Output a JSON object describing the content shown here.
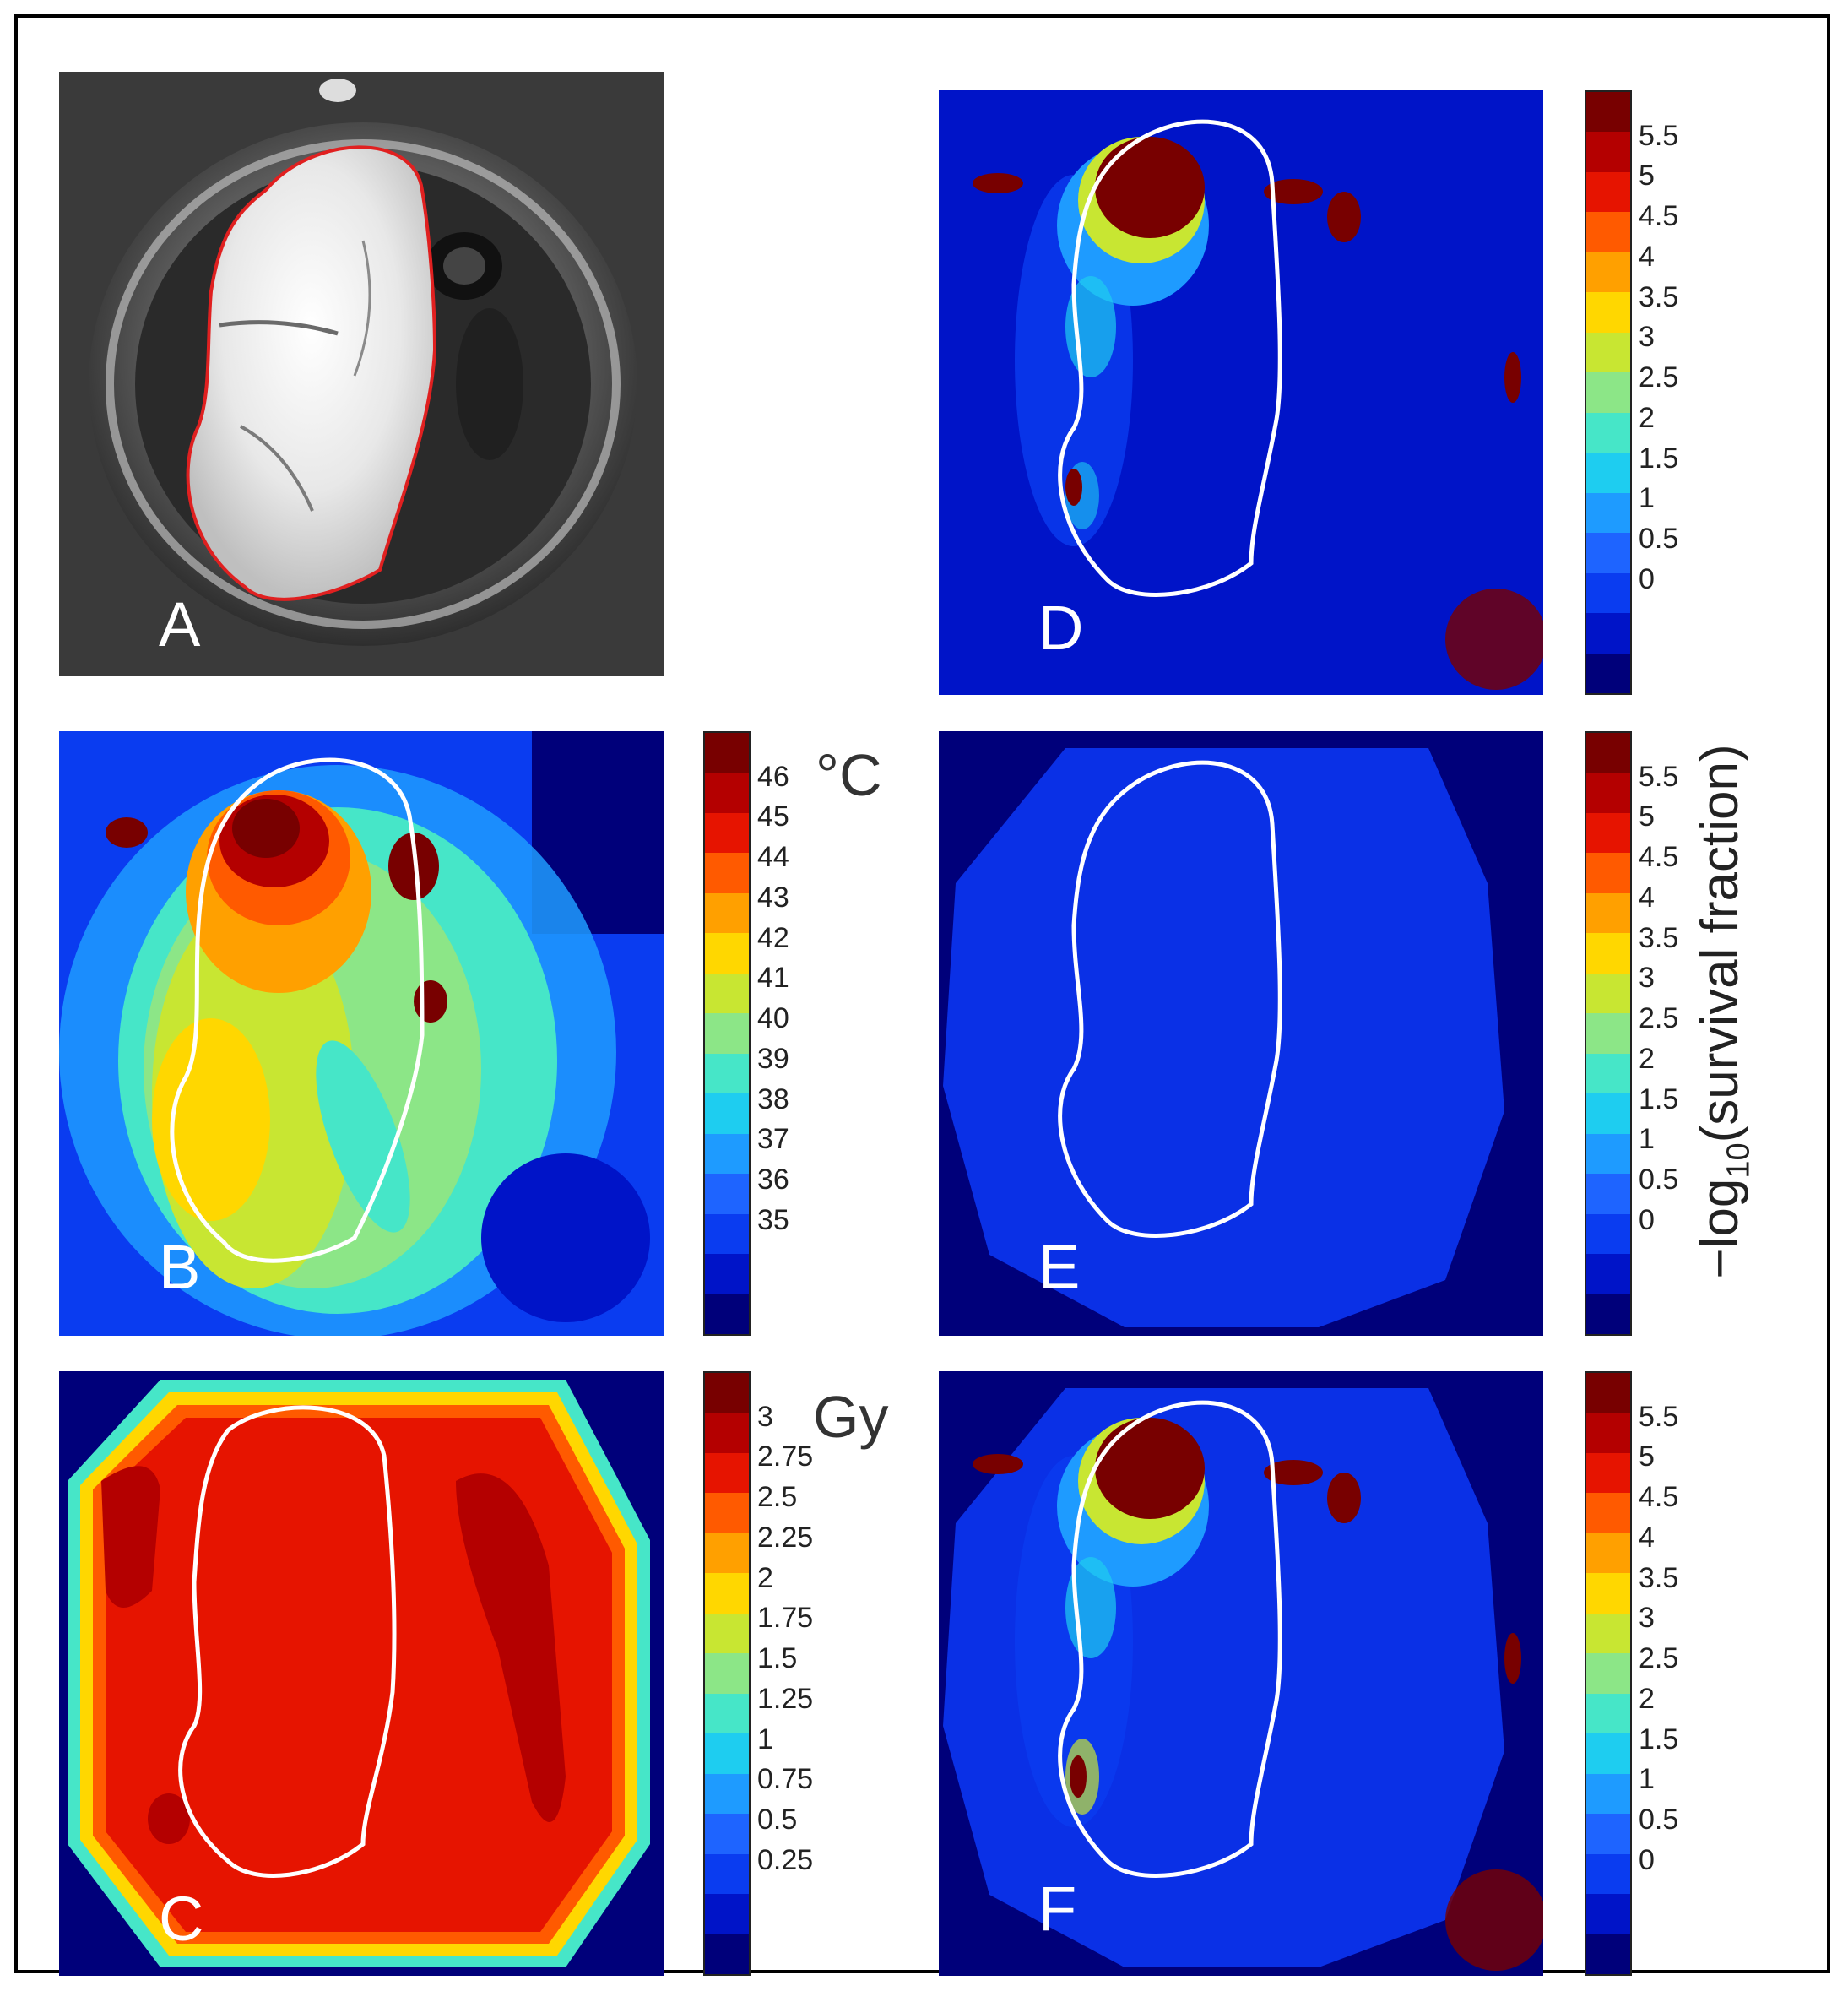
{
  "panels": {
    "A": {
      "label": "A"
    },
    "B": {
      "label": "B"
    },
    "C": {
      "label": "C"
    },
    "D": {
      "label": "D"
    },
    "E": {
      "label": "E"
    },
    "F": {
      "label": "F"
    }
  },
  "colorbars": {
    "temperature": {
      "unit": "°C",
      "ticks": [
        "46",
        "45",
        "44",
        "43",
        "42",
        "41",
        "40",
        "39",
        "38",
        "37",
        "36",
        "35"
      ]
    },
    "dose": {
      "unit": "Gy",
      "ticks": [
        "3",
        "2.75",
        "2.5",
        "2.25",
        "2",
        "1.75",
        "1.5",
        "1.25",
        "1",
        "0.75",
        "0.5",
        "0.25"
      ]
    },
    "survival_d": {
      "ticks": [
        "5.5",
        "5",
        "4.5",
        "4",
        "3.5",
        "3",
        "2.5",
        "2",
        "1.5",
        "1",
        "0.5",
        "0"
      ]
    },
    "survival_e": {
      "ticks": [
        "5.5",
        "5",
        "4.5",
        "4",
        "3.5",
        "3",
        "2.5",
        "2",
        "1.5",
        "1",
        "0.5",
        "0"
      ]
    },
    "survival_f": {
      "ticks": [
        "5.5",
        "5",
        "4.5",
        "4",
        "3.5",
        "3",
        "2.5",
        "2",
        "1.5",
        "1",
        "0.5",
        "0"
      ]
    }
  },
  "y_axis_label": {
    "prefix": "−log",
    "subscript": "10",
    "suffix": "(survival fraction)"
  },
  "jet_colors": [
    "#00007a",
    "#0014c8",
    "#0a3cf0",
    "#1e64ff",
    "#1e9bff",
    "#1ecdf0",
    "#46e6c8",
    "#8ce687",
    "#c8e632",
    "#ffd700",
    "#ffa000",
    "#ff5a00",
    "#e61400",
    "#b40000",
    "#780000"
  ]
}
